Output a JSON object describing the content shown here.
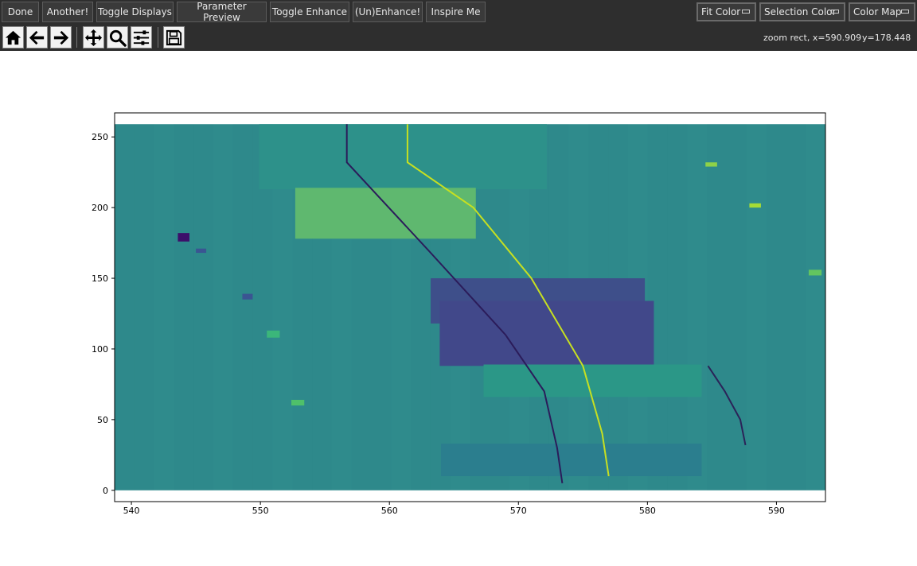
{
  "toolbar": {
    "buttons": [
      "Done",
      "Another!",
      "Toggle Displays",
      "Parameter Preview",
      "Toggle Enhance",
      "(Un)Enhance!",
      "Inspire Me"
    ],
    "dropdowns": [
      "Fit Color",
      "Selection Color",
      "Color Map"
    ],
    "nav_tools": [
      "home-icon",
      "back-arrow-icon",
      "forward-arrow-icon",
      "pan-icon",
      "zoom-icon",
      "configure-subplots-icon",
      "save-icon"
    ],
    "readout_x": "zoom rect, x=590.909",
    "readout_y": "y=178.448"
  },
  "chart_data": {
    "type": "heatmap",
    "title": "",
    "xlabel": "",
    "ylabel": "",
    "xlim": [
      538.7,
      593.8
    ],
    "ylim": [
      -8,
      267
    ],
    "image_extent": {
      "x": [
        538.7,
        593.8
      ],
      "y": [
        0,
        259
      ]
    },
    "xticks": [
      540,
      550,
      560,
      570,
      580,
      590
    ],
    "yticks": [
      0,
      50,
      100,
      150,
      200,
      250
    ],
    "colormap": "viridis",
    "background_color": "#2f8b8c",
    "blocks": [
      {
        "x": [
          549.9,
          572.2
        ],
        "y": [
          213,
          259
        ],
        "color": "#2d918a"
      },
      {
        "x": [
          552.7,
          566.7
        ],
        "y": [
          178,
          214
        ],
        "color": "#5fb86f"
      },
      {
        "x": [
          563.2,
          579.8
        ],
        "y": [
          118,
          150
        ],
        "color": "#3e4f8a"
      },
      {
        "x": [
          563.9,
          580.5
        ],
        "y": [
          88,
          134
        ],
        "color": "#41488a"
      },
      {
        "x": [
          567.3,
          584.2
        ],
        "y": [
          66,
          89
        ],
        "color": "#2b9787"
      },
      {
        "x": [
          564.0,
          584.2
        ],
        "y": [
          10,
          33
        ],
        "color": "#2b7e8e"
      }
    ],
    "curves": [
      {
        "color": "#c7e020",
        "points": [
          [
            561.4,
            259
          ],
          [
            561.4,
            232
          ],
          [
            566.5,
            200
          ],
          [
            571.0,
            150
          ],
          [
            575.0,
            88
          ],
          [
            576.5,
            40
          ],
          [
            577.0,
            10
          ]
        ]
      },
      {
        "color": "#2b1c5a",
        "points": [
          [
            556.7,
            259
          ],
          [
            556.7,
            232
          ],
          [
            563.0,
            170
          ],
          [
            569.0,
            110
          ],
          [
            572.0,
            70
          ],
          [
            573.0,
            30
          ],
          [
            573.4,
            5
          ]
        ]
      },
      {
        "color": "#2b2358",
        "points": [
          [
            584.7,
            88
          ],
          [
            586.0,
            70
          ],
          [
            587.2,
            50
          ],
          [
            587.6,
            32
          ]
        ]
      }
    ],
    "markers": [
      {
        "x": [
          543.6,
          544.5
        ],
        "y": [
          176,
          182
        ],
        "color": "#3c0f6a"
      },
      {
        "x": [
          545.0,
          545.8
        ],
        "y": [
          168,
          171
        ],
        "color": "#3a5592"
      },
      {
        "x": [
          548.6,
          549.4
        ],
        "y": [
          135,
          139
        ],
        "color": "#3a5592"
      },
      {
        "x": [
          550.5,
          551.5
        ],
        "y": [
          108,
          113
        ],
        "color": "#3bb67a"
      },
      {
        "x": [
          552.4,
          553.4
        ],
        "y": [
          60,
          64
        ],
        "color": "#4fc06a"
      },
      {
        "x": [
          584.5,
          585.4
        ],
        "y": [
          229,
          232
        ],
        "color": "#8ed248"
      },
      {
        "x": [
          587.9,
          588.8
        ],
        "y": [
          200,
          203
        ],
        "color": "#a5db36"
      },
      {
        "x": [
          592.5,
          593.5
        ],
        "y": [
          152,
          156
        ],
        "color": "#63c55f"
      }
    ]
  }
}
